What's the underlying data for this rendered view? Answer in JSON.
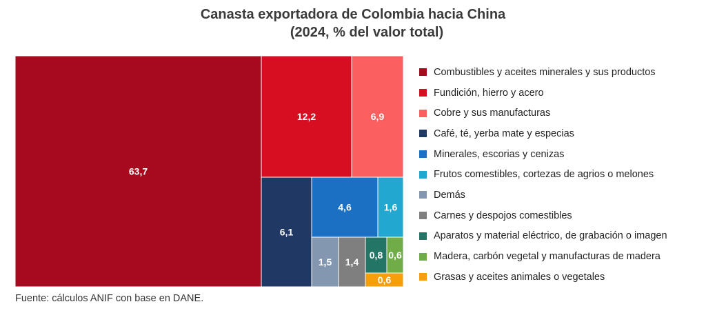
{
  "title": "Canasta exportadora de Colombia hacia China",
  "subtitle": "(2024, % del valor total)",
  "source": "Fuente: cálculos ANIF con base en DANE.",
  "chart_data": {
    "type": "treemap",
    "title": "Canasta exportadora de Colombia hacia China",
    "subtitle": "(2024, % del valor total)",
    "legend_position": "right",
    "series": [
      {
        "name": "Combustibles y aceites minerales y sus productos",
        "value": 63.7,
        "label": "63,7",
        "color": "#a50a1e"
      },
      {
        "name": "Fundición, hierro y acero",
        "value": 12.2,
        "label": "12,2",
        "color": "#d70d21"
      },
      {
        "name": "Cobre y sus manufacturas",
        "value": 6.9,
        "label": "6,9",
        "color": "#fc5f5f"
      },
      {
        "name": "Café, té, yerba mate y especias",
        "value": 6.1,
        "label": "6,1",
        "color": "#1f3864"
      },
      {
        "name": "Minerales, escorias y cenizas",
        "value": 4.6,
        "label": "4,6",
        "color": "#1c70c4"
      },
      {
        "name": "Frutos comestibles, cortezas de agrios o melones",
        "value": 1.6,
        "label": "1,6",
        "color": "#22a7d1"
      },
      {
        "name": "Demás",
        "value": 1.5,
        "label": "1,5",
        "color": "#8497b0"
      },
      {
        "name": "Carnes y despojos comestibles",
        "value": 1.4,
        "label": "1,4",
        "color": "#7f7f7f"
      },
      {
        "name": "Aparatos y material eléctrico, de grabación o imagen",
        "value": 0.8,
        "label": "0,8",
        "color": "#237565"
      },
      {
        "name": "Madera, carbón vegetal y manufacturas de madera",
        "value": 0.6,
        "label": "0,6",
        "color": "#70ad47"
      },
      {
        "name": "Grasas y aceites animales o vegetales",
        "value": 0.6,
        "label": "0,6",
        "color": "#f79e0b"
      }
    ]
  }
}
